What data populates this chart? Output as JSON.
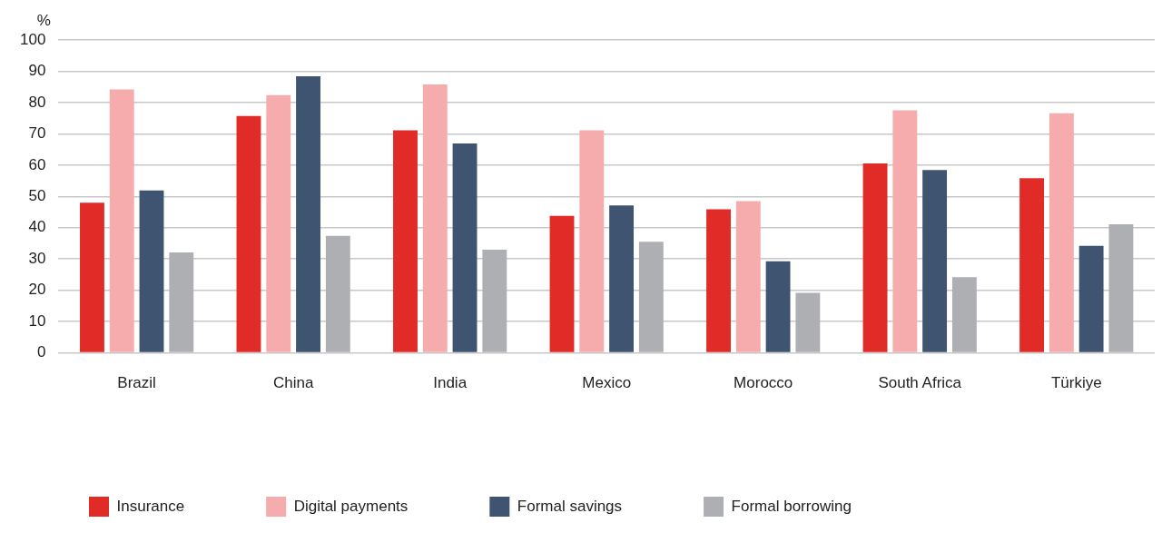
{
  "chart_data": {
    "type": "bar",
    "ylabel": "%",
    "categories": [
      "Brazil",
      "China",
      "India",
      "Mexico",
      "Morocco",
      "South Africa",
      "Türkiye"
    ],
    "series": [
      {
        "name": "Insurance",
        "color": "#e02b27",
        "values": [
          48.0,
          75.7,
          71.1,
          43.8,
          45.9,
          60.5,
          55.8
        ]
      },
      {
        "name": "Digital payments",
        "color": "#f6abad",
        "values": [
          84.2,
          82.4,
          85.8,
          71.1,
          48.5,
          77.5,
          76.6
        ]
      },
      {
        "name": "Formal savings",
        "color": "#3e5470",
        "values": [
          51.9,
          88.4,
          66.9,
          47.1,
          29.3,
          58.4,
          34.2
        ]
      },
      {
        "name": "Formal borrowing",
        "color": "#aeafb2",
        "values": [
          32.1,
          37.4,
          33.0,
          35.5,
          19.2,
          24.2,
          41.1
        ]
      }
    ],
    "ylim": [
      0,
      100
    ],
    "yticks": [
      0,
      10,
      20,
      30,
      40,
      50,
      60,
      70,
      80,
      90,
      100
    ],
    "grid": "y",
    "legend": "bottom"
  }
}
